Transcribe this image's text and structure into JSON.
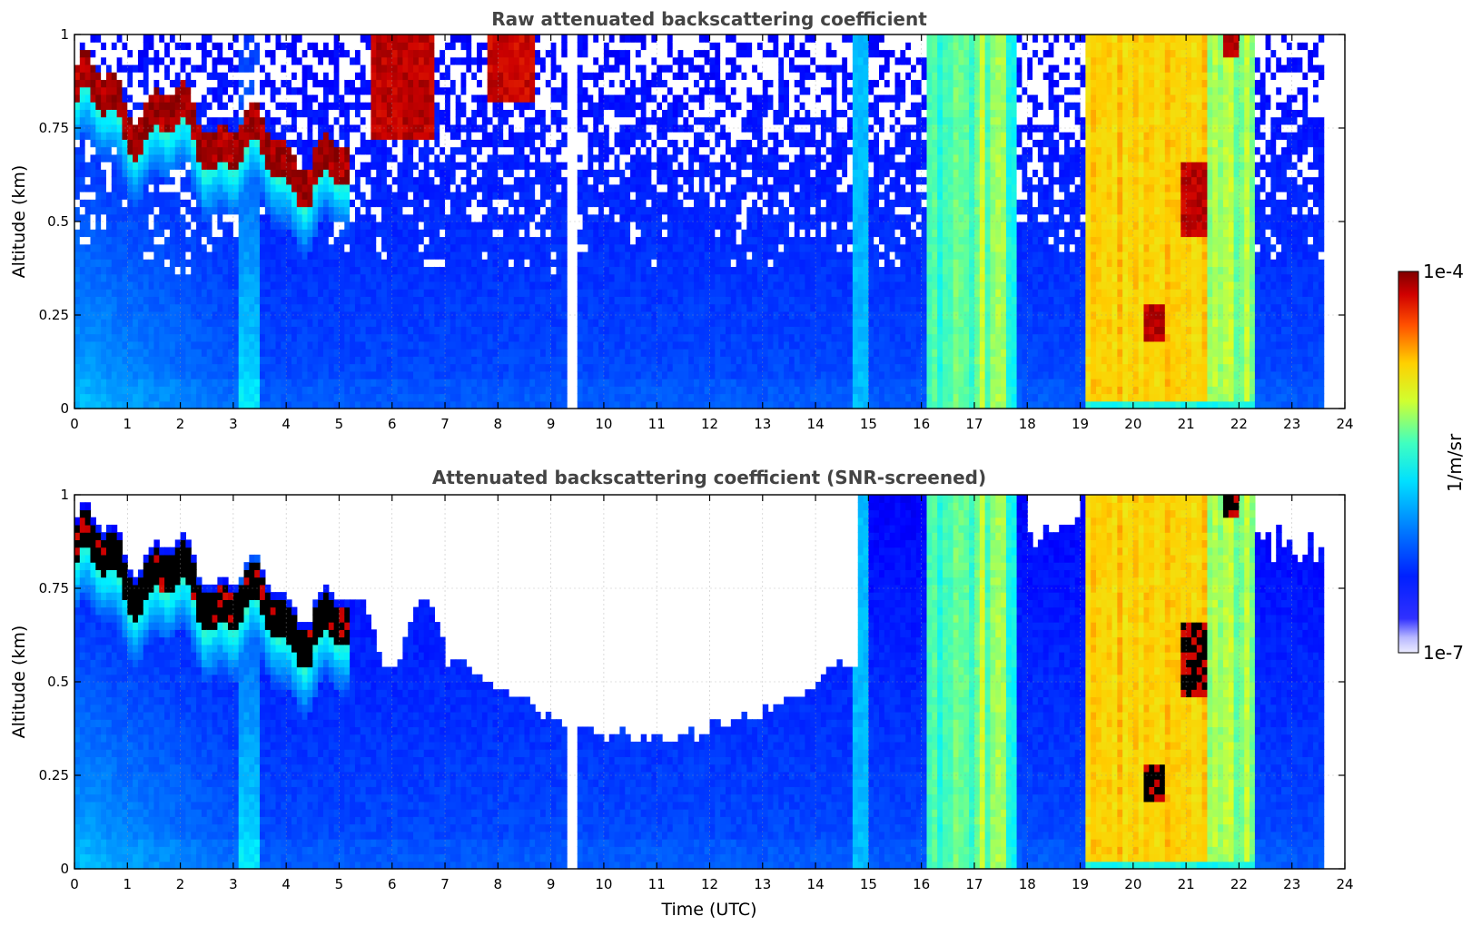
{
  "chart_data": [
    {
      "type": "heatmap",
      "title": "Raw attenuated backscattering coefficient",
      "xlabel": "",
      "ylabel": "Altitude (km)",
      "xlim": [
        0,
        24
      ],
      "ylim": [
        0,
        1
      ],
      "x_ticks": [
        "0",
        "1",
        "2",
        "3",
        "4",
        "5",
        "6",
        "7",
        "8",
        "9",
        "10",
        "11",
        "12",
        "13",
        "14",
        "15",
        "16",
        "17",
        "18",
        "19",
        "20",
        "21",
        "22",
        "23",
        "24"
      ],
      "y_ticks": [
        "0",
        "0.25",
        "0.5",
        "0.75",
        "1"
      ],
      "grid": true,
      "snr_screened": false,
      "data_end_hour": 23.6,
      "gap_hour": 9.4
    },
    {
      "type": "heatmap",
      "title": "Attenuated backscattering coefficient (SNR-screened)",
      "xlabel": "Time (UTC)",
      "ylabel": "Altitude (km)",
      "xlim": [
        0,
        24
      ],
      "ylim": [
        0,
        1
      ],
      "x_ticks": [
        "0",
        "1",
        "2",
        "3",
        "4",
        "5",
        "6",
        "7",
        "8",
        "9",
        "10",
        "11",
        "12",
        "13",
        "14",
        "15",
        "16",
        "17",
        "18",
        "19",
        "20",
        "21",
        "22",
        "23",
        "24"
      ],
      "y_ticks": [
        "0",
        "0.25",
        "0.5",
        "0.75",
        "1"
      ],
      "grid": true,
      "snr_screened": true,
      "data_end_hour": 23.6,
      "gap_hour": 9.4
    }
  ],
  "colorbar": {
    "max_label": "1e-4",
    "min_label": "1e-7",
    "unit": "1/m/sr",
    "colormap": "jet",
    "scale": "log"
  }
}
